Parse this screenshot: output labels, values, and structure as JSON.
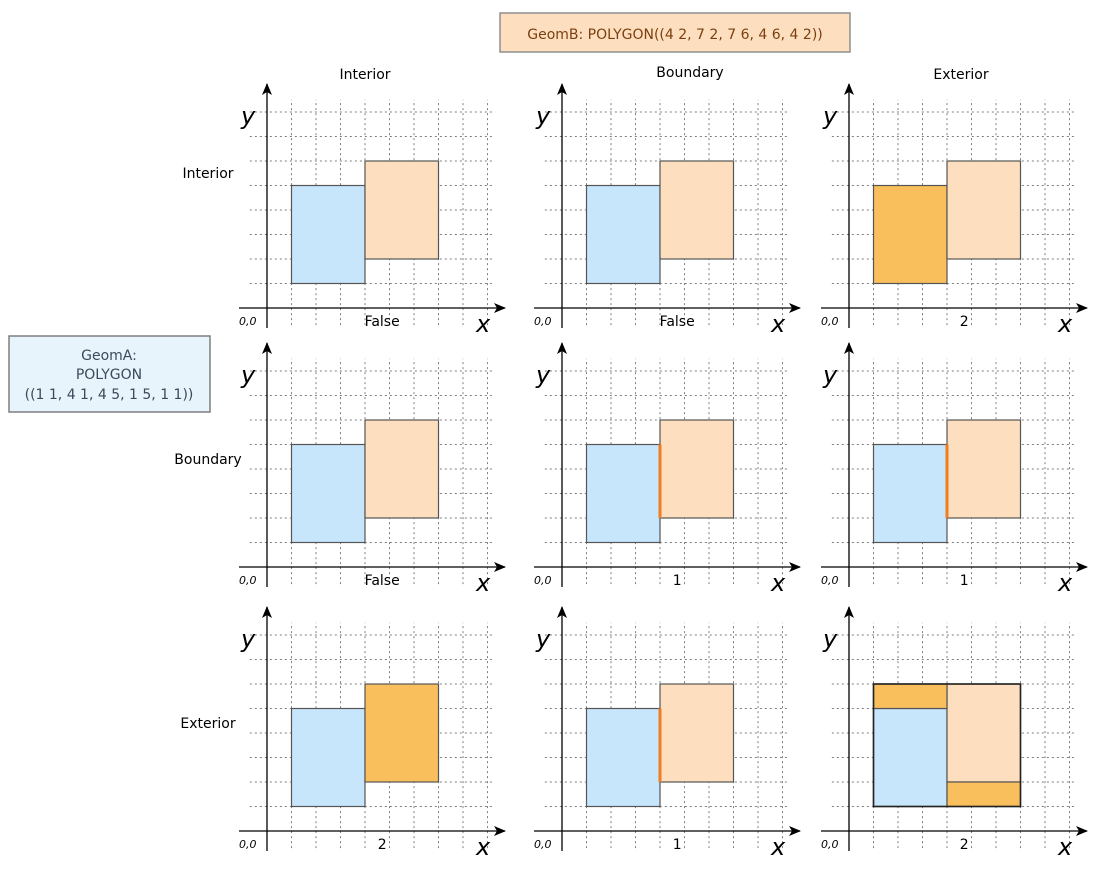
{
  "geom_b": {
    "label": "GeomB: POLYGON((4 2, 7 2, 7 6, 4 6, 4 2))",
    "fill": "#fddfbf",
    "border": "#8f8f8f",
    "text_color": "#7a3f10"
  },
  "geom_a": {
    "lines": [
      "GeomA:",
      "POLYGON",
      "((1 1, 4 1, 4 5, 1 5, 1 1))"
    ],
    "fill": "#e8f4fc",
    "border": "#7f7f7f",
    "text_color": "#3a4a5a"
  },
  "columns": [
    "Interior",
    "Boundary",
    "Exterior"
  ],
  "rows": [
    "Interior",
    "Boundary",
    "Exterior"
  ],
  "axes": {
    "x": "x",
    "y": "y",
    "origin": "0,0"
  },
  "colors": {
    "geom_a_fill": "#c7e5fb",
    "geom_b_fill": "#fddfbf",
    "highlight_fill": "#f8bf5c",
    "highlight_line": "#f07d22",
    "outline": "#555555"
  },
  "cells": [
    [
      {
        "result": "False",
        "highlight": "none"
      },
      {
        "result": "False",
        "highlight": "none"
      },
      {
        "result": "2",
        "highlight": "a"
      }
    ],
    [
      {
        "result": "False",
        "highlight": "none"
      },
      {
        "result": "1",
        "highlight": "line"
      },
      {
        "result": "1",
        "highlight": "line"
      }
    ],
    [
      {
        "result": "2",
        "highlight": "b"
      },
      {
        "result": "1",
        "highlight": "line"
      },
      {
        "result": "2",
        "highlight": "ext"
      }
    ]
  ]
}
